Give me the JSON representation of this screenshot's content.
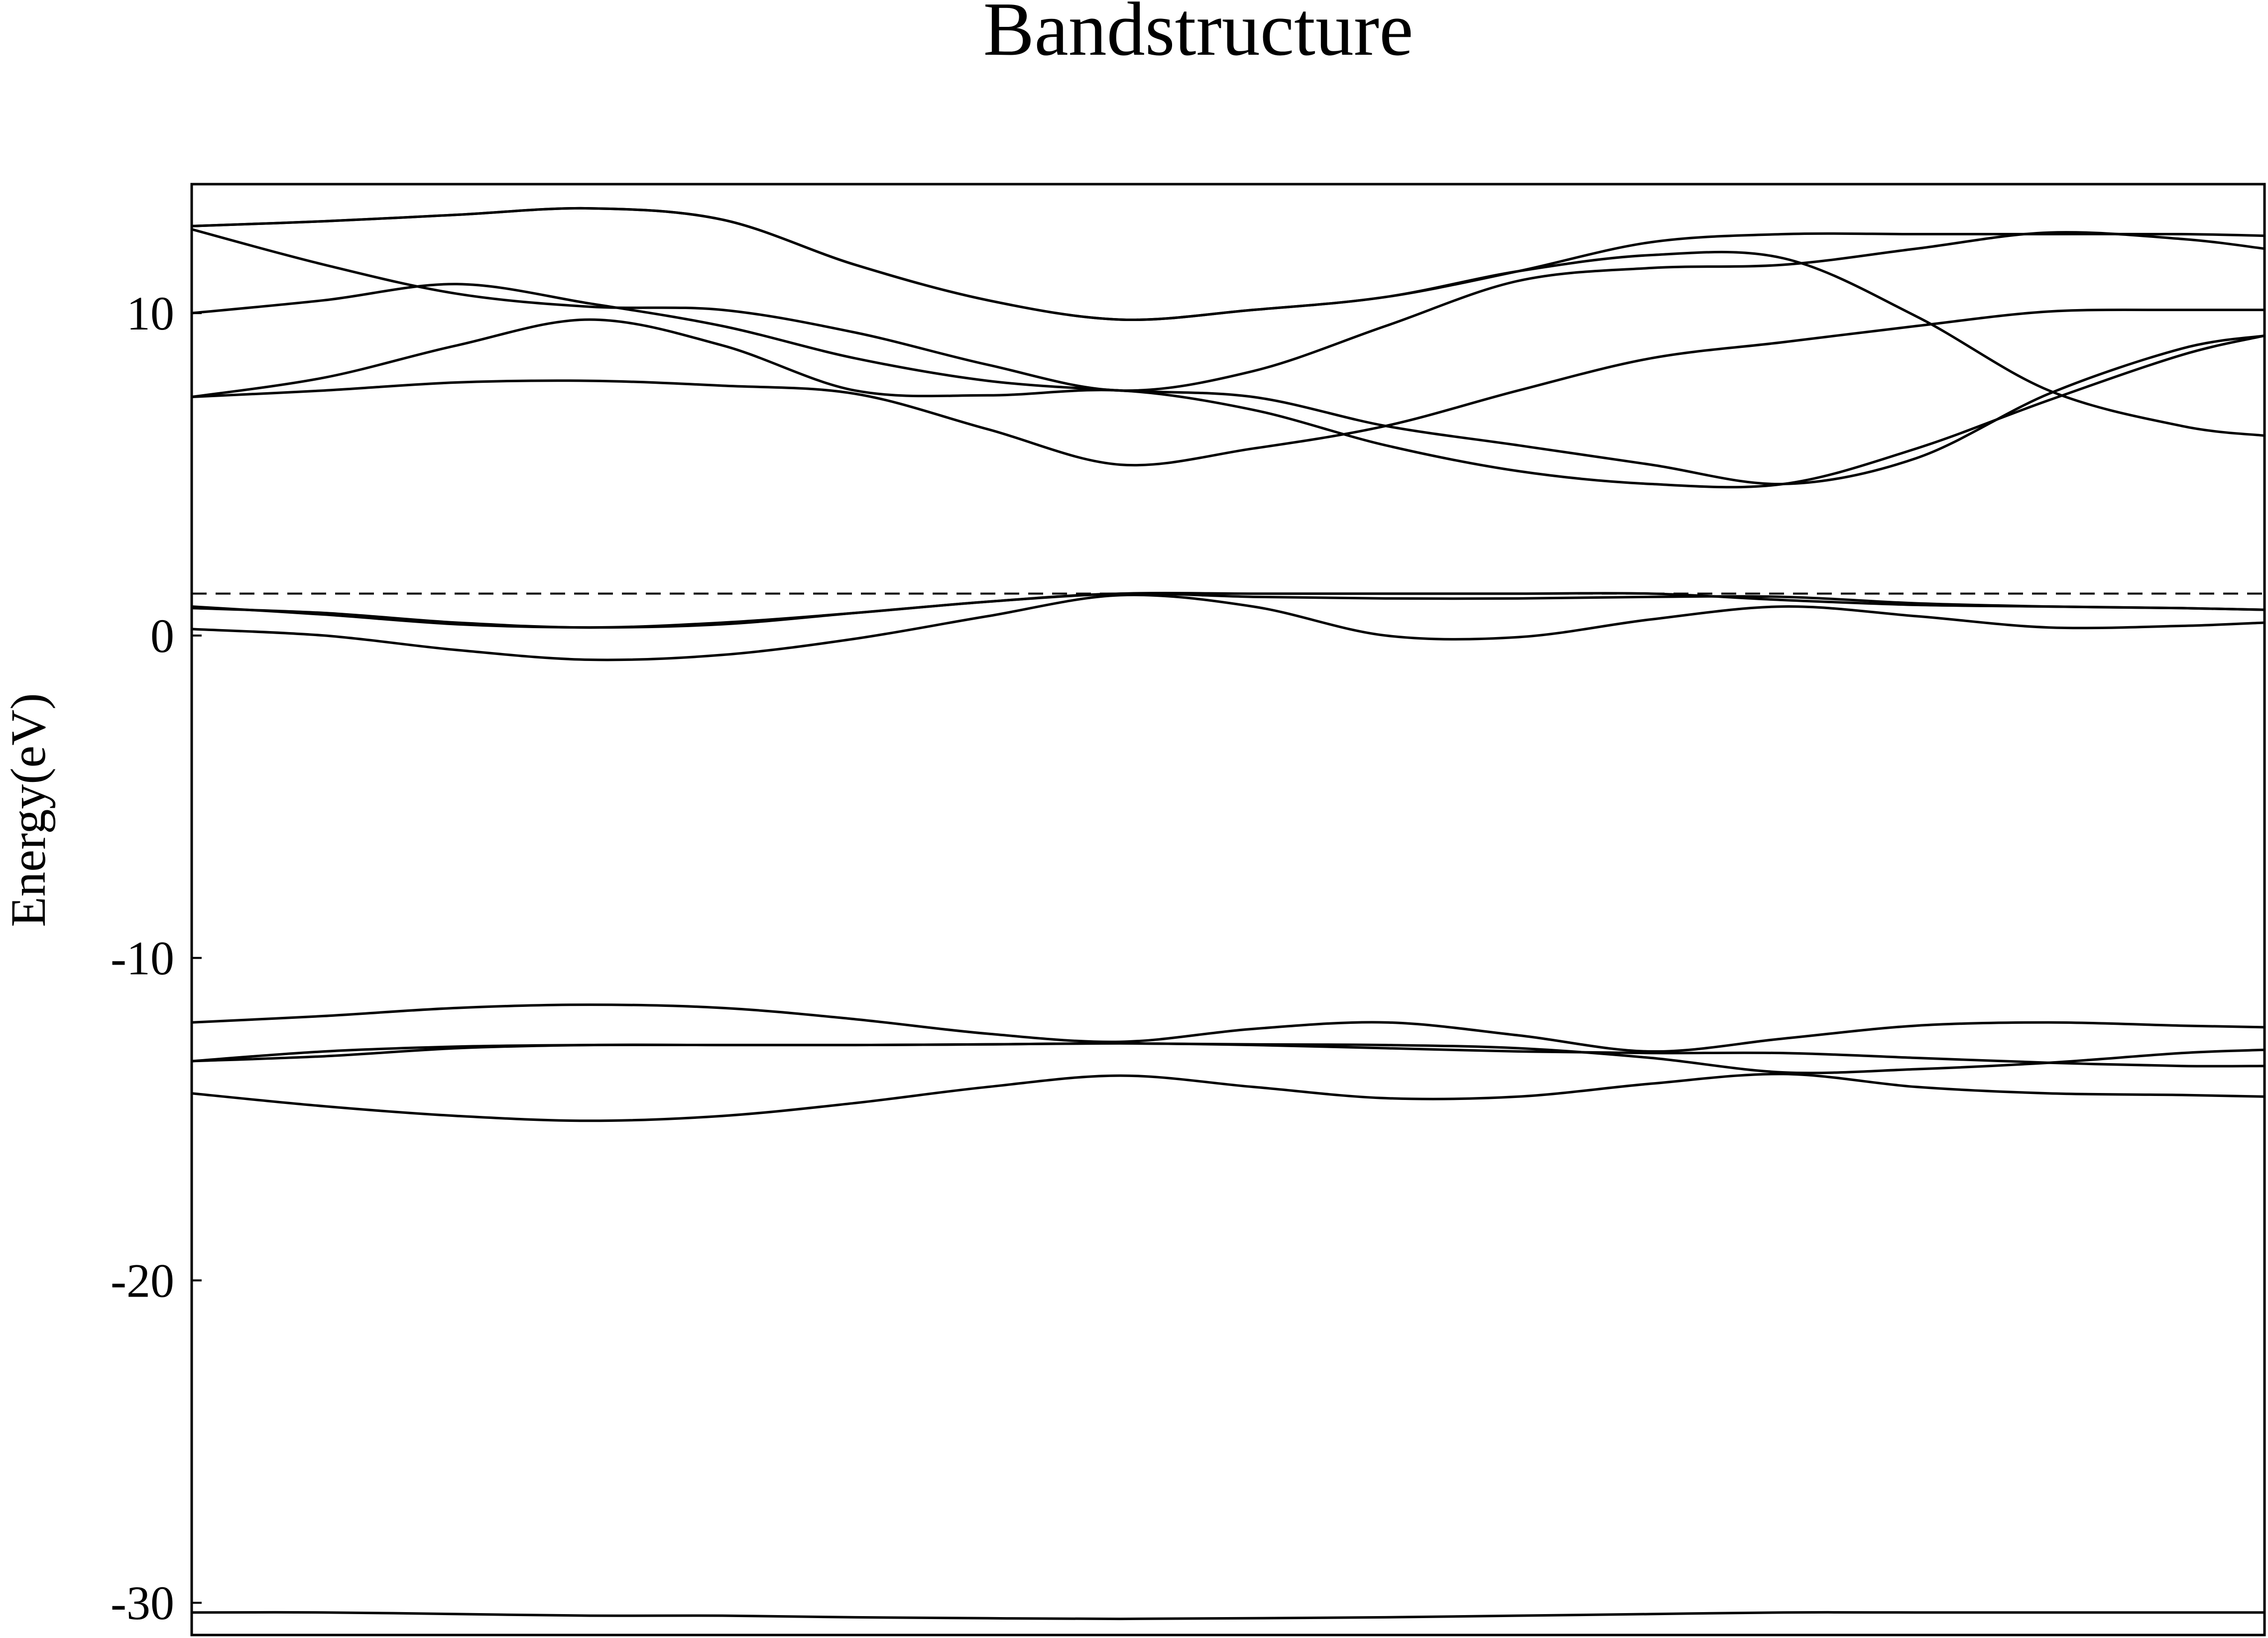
{
  "chart_data": {
    "type": "line",
    "title": "Bandstructure",
    "xlabel": "",
    "ylabel": "Energy(eV)",
    "xlim": [
      0,
      1
    ],
    "ylim": [
      -31,
      14
    ],
    "yticks": [
      10,
      0,
      -10,
      -20,
      -30
    ],
    "ytick_labels": [
      "10",
      "0",
      "-10",
      "-20",
      "-30"
    ],
    "grid": false,
    "fermi_level": 1.3,
    "x": [
      0,
      0.064,
      0.128,
      0.192,
      0.256,
      0.32,
      0.384,
      0.448,
      0.512,
      0.576,
      0.64,
      0.704,
      0.768,
      0.832,
      0.896,
      0.96,
      1.0
    ],
    "series": [
      {
        "values": [
          -30.3,
          -30.3,
          -30.35,
          -30.4,
          -30.4,
          -30.45,
          -30.48,
          -30.5,
          -30.48,
          -30.45,
          -30.4,
          -30.35,
          -30.3,
          -30.3,
          -30.3,
          -30.3,
          -30.3
        ]
      },
      {
        "values": [
          -14.2,
          -14.6,
          -14.9,
          -15.05,
          -14.9,
          -14.5,
          -14.0,
          -13.65,
          -14.0,
          -14.35,
          -14.3,
          -13.9,
          -13.6,
          -14.0,
          -14.2,
          -14.25,
          -14.3
        ]
      },
      {
        "values": [
          -13.2,
          -13.05,
          -12.8,
          -12.7,
          -12.7,
          -12.7,
          -12.68,
          -12.65,
          -12.7,
          -12.8,
          -12.9,
          -12.95,
          -12.95,
          -13.1,
          -13.25,
          -13.35,
          -13.35
        ]
      },
      {
        "values": [
          -13.2,
          -12.9,
          -12.75,
          -12.7,
          -12.7,
          -12.7,
          -12.68,
          -12.65,
          -12.68,
          -12.7,
          -12.8,
          -13.1,
          -13.55,
          -13.45,
          -13.25,
          -12.95,
          -12.85
        ]
      },
      {
        "values": [
          -12.0,
          -11.8,
          -11.55,
          -11.45,
          -11.55,
          -11.9,
          -12.35,
          -12.6,
          -12.2,
          -12.0,
          -12.4,
          -12.9,
          -12.5,
          -12.1,
          -12.0,
          -12.1,
          -12.15
        ]
      },
      {
        "values": [
          0.2,
          0.0,
          -0.45,
          -0.75,
          -0.6,
          -0.1,
          0.6,
          1.25,
          0.9,
          0.0,
          -0.05,
          0.5,
          0.9,
          0.6,
          0.25,
          0.3,
          0.4
        ]
      },
      {
        "values": [
          0.9,
          0.65,
          0.35,
          0.25,
          0.35,
          0.7,
          1.05,
          1.3,
          1.2,
          1.15,
          1.15,
          1.2,
          1.2,
          1.0,
          0.9,
          0.85,
          0.8
        ]
      },
      {
        "values": [
          0.85,
          0.7,
          0.4,
          0.25,
          0.4,
          0.7,
          1.05,
          1.3,
          1.3,
          1.3,
          1.3,
          1.3,
          1.1,
          0.95,
          0.9,
          0.85,
          0.8
        ]
      },
      {
        "values": [
          7.4,
          7.6,
          7.85,
          7.9,
          7.75,
          7.5,
          6.4,
          5.3,
          5.8,
          6.5,
          7.6,
          8.6,
          9.1,
          9.6,
          10.05,
          10.1,
          10.1
        ]
      },
      {
        "values": [
          7.4,
          8.0,
          9.0,
          9.8,
          9.0,
          7.6,
          7.45,
          7.6,
          7.0,
          5.9,
          5.1,
          4.7,
          4.7,
          5.8,
          7.3,
          8.7,
          9.3
        ]
      },
      {
        "values": [
          10.0,
          10.4,
          10.9,
          10.3,
          9.6,
          8.6,
          7.9,
          7.6,
          7.4,
          6.5,
          5.9,
          5.3,
          4.7,
          5.5,
          7.5,
          8.9,
          9.3
        ]
      },
      {
        "values": [
          12.6,
          11.5,
          10.6,
          10.2,
          10.1,
          9.4,
          8.4,
          7.6,
          8.2,
          9.6,
          11.0,
          11.4,
          11.5,
          12.0,
          12.5,
          12.3,
          12.0
        ]
      },
      {
        "values": [
          12.7,
          12.85,
          13.05,
          13.25,
          12.9,
          11.5,
          10.4,
          9.8,
          10.1,
          10.5,
          11.3,
          11.8,
          11.7,
          9.9,
          7.6,
          6.5,
          6.2
        ]
      },
      {
        "values": [
          12.7,
          12.85,
          13.05,
          13.25,
          12.9,
          11.5,
          10.4,
          9.8,
          10.1,
          10.5,
          11.3,
          12.2,
          12.45,
          12.45,
          12.45,
          12.45,
          12.4
        ]
      }
    ]
  }
}
